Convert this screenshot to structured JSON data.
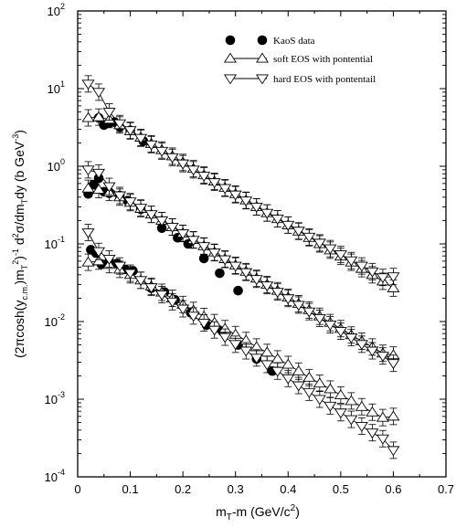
{
  "chart_data": {
    "type": "scatter",
    "xlabel_main": "m",
    "xlabel_sub": "T",
    "xlabel_rest": "-m (GeV/c",
    "xlabel_sup": "2",
    "xlabel_end": ")",
    "ylabel": "(2πcosh(y_c.m.)m_T^2)^-1 d^2σ/dm_T dy (b GeV^-3)",
    "ylabel_parts": {
      "p1": "(2πcosh(y",
      "s1": "c.m.",
      "p2": ")m",
      "s2": "T",
      "u1": "2",
      "p3": ")",
      "u2": "-1",
      "p4": " d",
      "u3": "2",
      "p5": "σ/dm",
      "s3": "T",
      "p6": "dy (b GeV",
      "u4": "-3",
      "p7": ")"
    },
    "xlim": [
      0,
      0.7
    ],
    "ylim": [
      0.0001,
      100
    ],
    "yscale": "log",
    "xticks": [
      "0",
      "0.1",
      "0.2",
      "0.3",
      "0.4",
      "0.5",
      "0.6",
      "0.7"
    ],
    "yticks": [
      {
        "base": "10",
        "exp": "-4"
      },
      {
        "base": "10",
        "exp": "-3"
      },
      {
        "base": "10",
        "exp": "-2"
      },
      {
        "base": "10",
        "exp": "-1"
      },
      {
        "base": "10",
        "exp": "0"
      },
      {
        "base": "10",
        "exp": "1"
      },
      {
        "base": "10",
        "exp": "2"
      }
    ],
    "legend_position": "top-right",
    "legend": [
      {
        "label": "KaoS data",
        "marker": "filled-circle"
      },
      {
        "label": "soft EOS with pontential",
        "marker": "triangle-up"
      },
      {
        "label": "hard EOS with pontentail",
        "marker": "triangle-down"
      }
    ],
    "series": [
      {
        "group": 1,
        "marker": "filled-circle",
        "x": [
          0.04,
          0.05,
          0.06,
          0.07,
          0.08,
          0.1,
          0.125
        ],
        "y": [
          4.2,
          3.4,
          3.6,
          3.7,
          3.2,
          2.9,
          2.1
        ]
      },
      {
        "group": 1,
        "marker": "triangle-up",
        "x": [
          0.02,
          0.04,
          0.06,
          0.08,
          0.1,
          0.12,
          0.14,
          0.16,
          0.18,
          0.2,
          0.22,
          0.24,
          0.26,
          0.28,
          0.3,
          0.32,
          0.34,
          0.36,
          0.38,
          0.4,
          0.42,
          0.44,
          0.46,
          0.48,
          0.5,
          0.52,
          0.54,
          0.56,
          0.58,
          0.6
        ],
        "y": [
          4.2,
          4.3,
          4.0,
          3.4,
          2.85,
          2.35,
          1.95,
          1.62,
          1.35,
          1.12,
          0.93,
          0.77,
          0.64,
          0.53,
          0.44,
          0.365,
          0.3,
          0.25,
          0.21,
          0.175,
          0.145,
          0.12,
          0.1,
          0.083,
          0.069,
          0.058,
          0.048,
          0.04,
          0.033,
          0.027
        ]
      },
      {
        "group": 1,
        "marker": "triangle-down",
        "x": [
          0.02,
          0.04,
          0.06,
          0.08,
          0.1,
          0.12,
          0.14,
          0.16,
          0.18,
          0.2,
          0.22,
          0.24,
          0.26,
          0.28,
          0.3,
          0.32,
          0.34,
          0.36,
          0.38,
          0.4,
          0.42,
          0.44,
          0.46,
          0.48,
          0.5,
          0.52,
          0.54,
          0.56,
          0.58,
          0.6
        ],
        "y": [
          11.5,
          9.0,
          5.0,
          3.55,
          2.9,
          2.3,
          1.9,
          1.57,
          1.3,
          1.08,
          0.9,
          0.75,
          0.62,
          0.52,
          0.43,
          0.36,
          0.3,
          0.25,
          0.21,
          0.175,
          0.147,
          0.123,
          0.103,
          0.087,
          0.073,
          0.061,
          0.052,
          0.044,
          0.037,
          0.038
        ]
      },
      {
        "group": 2,
        "marker": "filled-circle",
        "x": [
          0.02,
          0.03,
          0.04,
          0.05,
          0.06,
          0.08,
          0.095,
          0.12,
          0.16,
          0.19,
          0.21,
          0.24,
          0.27,
          0.305
        ],
        "y": [
          0.44,
          0.58,
          0.7,
          0.47,
          0.45,
          0.42,
          0.36,
          0.28,
          0.16,
          0.12,
          0.1,
          0.065,
          0.042,
          0.025
        ]
      },
      {
        "group": 2,
        "marker": "triangle-up",
        "x": [
          0.02,
          0.04,
          0.06,
          0.08,
          0.1,
          0.12,
          0.14,
          0.16,
          0.18,
          0.2,
          0.22,
          0.24,
          0.26,
          0.28,
          0.3,
          0.32,
          0.34,
          0.36,
          0.38,
          0.4,
          0.42,
          0.44,
          0.46,
          0.48,
          0.5,
          0.52,
          0.54,
          0.56,
          0.58,
          0.6
        ],
        "y": [
          0.52,
          0.5,
          0.46,
          0.4,
          0.34,
          0.285,
          0.24,
          0.2,
          0.165,
          0.137,
          0.113,
          0.094,
          0.078,
          0.064,
          0.053,
          0.044,
          0.036,
          0.03,
          0.025,
          0.0205,
          0.017,
          0.0141,
          0.0117,
          0.0097,
          0.0081,
          0.0067,
          0.0056,
          0.0047,
          0.0039,
          0.0037
        ]
      },
      {
        "group": 2,
        "marker": "triangle-down",
        "x": [
          0.02,
          0.04,
          0.06,
          0.08,
          0.1,
          0.12,
          0.14,
          0.16,
          0.18,
          0.2,
          0.22,
          0.24,
          0.26,
          0.28,
          0.3,
          0.32,
          0.34,
          0.36,
          0.38,
          0.4,
          0.42,
          0.44,
          0.46,
          0.48,
          0.5,
          0.52,
          0.54,
          0.56,
          0.58,
          0.6
        ],
        "y": [
          0.9,
          0.82,
          0.55,
          0.42,
          0.35,
          0.29,
          0.24,
          0.2,
          0.165,
          0.136,
          0.112,
          0.093,
          0.077,
          0.063,
          0.052,
          0.043,
          0.035,
          0.029,
          0.024,
          0.0198,
          0.0163,
          0.0134,
          0.011,
          0.0091,
          0.0075,
          0.0062,
          0.0051,
          0.0042,
          0.0036,
          0.0029
        ]
      },
      {
        "group": 3,
        "marker": "filled-circle",
        "x": [
          0.025,
          0.035,
          0.045,
          0.06,
          0.075,
          0.09,
          0.105,
          0.14,
          0.165,
          0.185,
          0.215,
          0.245,
          0.275,
          0.305,
          0.34,
          0.37
        ],
        "y": [
          0.084,
          0.076,
          0.055,
          0.06,
          0.056,
          0.047,
          0.045,
          0.027,
          0.024,
          0.019,
          0.013,
          0.009,
          0.0075,
          0.005,
          0.0033,
          0.0023
        ]
      },
      {
        "group": 3,
        "marker": "triangle-up",
        "x": [
          0.02,
          0.04,
          0.06,
          0.08,
          0.1,
          0.12,
          0.14,
          0.16,
          0.18,
          0.2,
          0.22,
          0.24,
          0.26,
          0.28,
          0.3,
          0.32,
          0.34,
          0.36,
          0.38,
          0.4,
          0.42,
          0.44,
          0.46,
          0.48,
          0.5,
          0.52,
          0.54,
          0.56,
          0.58,
          0.6
        ],
        "y": [
          0.058,
          0.06,
          0.054,
          0.047,
          0.04,
          0.034,
          0.0285,
          0.0238,
          0.0199,
          0.0166,
          0.0139,
          0.0116,
          0.0097,
          0.0081,
          0.0068,
          0.0057,
          0.0047,
          0.004,
          0.0033,
          0.0028,
          0.0023,
          0.0019,
          0.0016,
          0.00135,
          0.00113,
          0.00095,
          0.0008,
          0.00068,
          0.00058,
          0.0006
        ]
      },
      {
        "group": 3,
        "marker": "triangle-down",
        "x": [
          0.02,
          0.04,
          0.06,
          0.08,
          0.1,
          0.12,
          0.14,
          0.16,
          0.18,
          0.2,
          0.22,
          0.24,
          0.26,
          0.28,
          0.3,
          0.32,
          0.34,
          0.36,
          0.38,
          0.4,
          0.42,
          0.44,
          0.46,
          0.48,
          0.5,
          0.52,
          0.54,
          0.56,
          0.58,
          0.6
        ],
        "y": [
          0.14,
          0.08,
          0.064,
          0.052,
          0.042,
          0.034,
          0.0275,
          0.0222,
          0.018,
          0.0146,
          0.0118,
          0.0096,
          0.0078,
          0.0063,
          0.0051,
          0.0042,
          0.0034,
          0.0028,
          0.0023,
          0.00185,
          0.0015,
          0.00123,
          0.001,
          0.00082,
          0.00067,
          0.00055,
          0.00045,
          0.00037,
          0.00031,
          0.00022
        ]
      }
    ]
  }
}
